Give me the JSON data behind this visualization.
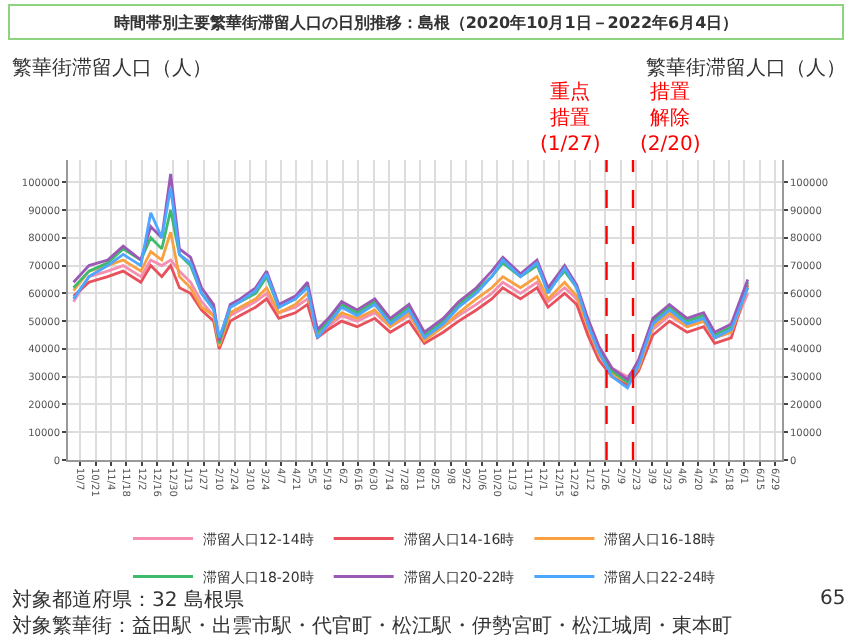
{
  "chart_data": {
    "type": "line",
    "title": "時間帯別主要繁華街滞留人口の日別推移：島根（2020年10月1日－2022年6月4日）",
    "ylabel": "繁華街滞留人口（人）",
    "y2label": "繁華街滞留人口（人）",
    "x": [
      "2020-10-01",
      "2020-10-15",
      "2020-11-01",
      "2020-11-15",
      "2020-12-01",
      "2020-12-10",
      "2020-12-20",
      "2020-12-28",
      "2021-01-05",
      "2021-01-15",
      "2021-01-25",
      "2021-02-05",
      "2021-02-10",
      "2021-02-20",
      "2021-03-01",
      "2021-03-15",
      "2021-03-25",
      "2021-04-05",
      "2021-04-20",
      "2021-05-01",
      "2021-05-10",
      "2021-05-20",
      "2021-06-01",
      "2021-06-15",
      "2021-07-01",
      "2021-07-15",
      "2021-08-01",
      "2021-08-15",
      "2021-09-01",
      "2021-09-15",
      "2021-10-01",
      "2021-10-15",
      "2021-10-25",
      "2021-11-10",
      "2021-11-25",
      "2021-12-05",
      "2021-12-20",
      "2021-12-31",
      "2022-01-10",
      "2022-01-20",
      "2022-02-01",
      "2022-02-15",
      "2022-02-25",
      "2022-03-10",
      "2022-03-25",
      "2022-04-10",
      "2022-04-25",
      "2022-05-05",
      "2022-05-20",
      "2022-06-04"
    ],
    "series": [
      {
        "name": "滞留人口12-14時",
        "color": "#f48fb1",
        "values": [
          57000,
          66000,
          68000,
          70000,
          66000,
          72000,
          70000,
          72000,
          68000,
          64000,
          57000,
          52000,
          44000,
          52000,
          54000,
          57000,
          60000,
          53000,
          55000,
          58000,
          46000,
          48000,
          52000,
          50000,
          53000,
          48000,
          52000,
          44000,
          48000,
          52000,
          56000,
          60000,
          64000,
          60000,
          64000,
          57000,
          62000,
          58000,
          47000,
          38000,
          33000,
          30000,
          34000,
          47000,
          52000,
          48000,
          50000,
          44000,
          46000,
          60000
        ]
      },
      {
        "name": "滞留人口14-16時",
        "color": "#e8505b",
        "values": [
          59000,
          64000,
          66000,
          68000,
          64000,
          70000,
          66000,
          70000,
          62000,
          60000,
          54000,
          50000,
          40000,
          50000,
          52000,
          55000,
          58000,
          51000,
          53000,
          56000,
          44000,
          47000,
          50000,
          48000,
          51000,
          46000,
          50000,
          42000,
          46000,
          50000,
          54000,
          58000,
          62000,
          58000,
          62000,
          55000,
          60000,
          56000,
          45000,
          36000,
          30000,
          27000,
          32000,
          45000,
          50000,
          46000,
          48000,
          42000,
          44000,
          63000
        ]
      },
      {
        "name": "滞留人口16-18時",
        "color": "#f9a03f",
        "values": [
          61000,
          68000,
          70000,
          72000,
          68000,
          75000,
          72000,
          82000,
          66000,
          62000,
          55000,
          52000,
          41000,
          53000,
          55000,
          58000,
          62000,
          53000,
          56000,
          60000,
          45000,
          49000,
          53000,
          51000,
          54000,
          48000,
          53000,
          43000,
          48000,
          53000,
          58000,
          62000,
          66000,
          62000,
          66000,
          58000,
          64000,
          59000,
          48000,
          38000,
          31000,
          28000,
          33000,
          48000,
          53000,
          48000,
          50000,
          44000,
          46000,
          62000
        ]
      },
      {
        "name": "滞留人口18-20時",
        "color": "#3dbb6b",
        "values": [
          62000,
          68000,
          71000,
          76000,
          72000,
          80000,
          76000,
          90000,
          74000,
          70000,
          60000,
          55000,
          42000,
          55000,
          57000,
          60000,
          66000,
          55000,
          58000,
          63000,
          46000,
          50000,
          56000,
          53000,
          57000,
          50000,
          55000,
          45000,
          50000,
          56000,
          61000,
          66000,
          71000,
          66000,
          70000,
          61000,
          68000,
          62000,
          50000,
          40000,
          32000,
          28000,
          35000,
          50000,
          55000,
          50000,
          52000,
          45000,
          48000,
          64000
        ]
      },
      {
        "name": "滞留人口20-22時",
        "color": "#9b59b6",
        "values": [
          64000,
          70000,
          72000,
          77000,
          72000,
          84000,
          80000,
          103000,
          76000,
          73000,
          62000,
          56000,
          43000,
          56000,
          58000,
          62000,
          68000,
          56000,
          59000,
          64000,
          47000,
          51000,
          57000,
          54000,
          58000,
          51000,
          56000,
          46000,
          51000,
          57000,
          62000,
          68000,
          73000,
          67000,
          72000,
          62000,
          70000,
          63000,
          51000,
          41000,
          33000,
          29000,
          36000,
          51000,
          56000,
          51000,
          53000,
          46000,
          49000,
          65000
        ]
      },
      {
        "name": "滞留人口22-24時",
        "color": "#4da6ff",
        "values": [
          58000,
          66000,
          70000,
          74000,
          70000,
          89000,
          80000,
          98000,
          74000,
          71000,
          60000,
          54000,
          44000,
          55000,
          57000,
          61000,
          67000,
          55000,
          58000,
          62000,
          44000,
          49000,
          55000,
          52000,
          56000,
          49000,
          54000,
          44000,
          49000,
          55000,
          60000,
          66000,
          72000,
          66000,
          71000,
          60000,
          69000,
          62000,
          49000,
          39000,
          30000,
          26000,
          34000,
          49000,
          54000,
          49000,
          51000,
          44000,
          47000,
          62000
        ]
      }
    ],
    "xlim": [
      "2020-09-26",
      "2022-07-05"
    ],
    "xticks": [
      {
        "value": "2020-10-07",
        "label": "10/7"
      },
      {
        "value": "2020-10-21",
        "label": "10/21"
      },
      {
        "value": "2020-11-04",
        "label": "11/4"
      },
      {
        "value": "2020-11-18",
        "label": "11/18"
      },
      {
        "value": "2020-12-02",
        "label": "12/2"
      },
      {
        "value": "2020-12-16",
        "label": "12/16"
      },
      {
        "value": "2020-12-30",
        "label": "12/30"
      },
      {
        "value": "2021-01-13",
        "label": "1/13"
      },
      {
        "value": "2021-01-27",
        "label": "1/27"
      },
      {
        "value": "2021-02-10",
        "label": "2/10"
      },
      {
        "value": "2021-02-24",
        "label": "2/24"
      },
      {
        "value": "2021-03-10",
        "label": "3/10"
      },
      {
        "value": "2021-03-24",
        "label": "3/24"
      },
      {
        "value": "2021-04-07",
        "label": "4/7"
      },
      {
        "value": "2021-04-21",
        "label": "4/21"
      },
      {
        "value": "2021-05-05",
        "label": "5/5"
      },
      {
        "value": "2021-05-19",
        "label": "5/19"
      },
      {
        "value": "2021-06-02",
        "label": "6/2"
      },
      {
        "value": "2021-06-16",
        "label": "6/16"
      },
      {
        "value": "2021-06-30",
        "label": "6/30"
      },
      {
        "value": "2021-07-14",
        "label": "7/14"
      },
      {
        "value": "2021-07-28",
        "label": "7/28"
      },
      {
        "value": "2021-08-11",
        "label": "8/11"
      },
      {
        "value": "2021-08-25",
        "label": "8/25"
      },
      {
        "value": "2021-09-08",
        "label": "9/8"
      },
      {
        "value": "2021-09-22",
        "label": "9/22"
      },
      {
        "value": "2021-10-06",
        "label": "10/6"
      },
      {
        "value": "2021-10-20",
        "label": "10/20"
      },
      {
        "value": "2021-11-03",
        "label": "11/3"
      },
      {
        "value": "2021-11-17",
        "label": "11/17"
      },
      {
        "value": "2021-12-01",
        "label": "12/1"
      },
      {
        "value": "2021-12-15",
        "label": "12/15"
      },
      {
        "value": "2021-12-29",
        "label": "12/29"
      },
      {
        "value": "2022-01-12",
        "label": "1/12"
      },
      {
        "value": "2022-01-26",
        "label": "1/26"
      },
      {
        "value": "2022-02-09",
        "label": "2/9"
      },
      {
        "value": "2022-02-23",
        "label": "2/23"
      },
      {
        "value": "2022-03-09",
        "label": "3/9"
      },
      {
        "value": "2022-03-23",
        "label": "3/23"
      },
      {
        "value": "2022-04-06",
        "label": "4/6"
      },
      {
        "value": "2022-04-20",
        "label": "4/20"
      },
      {
        "value": "2022-05-04",
        "label": "5/4"
      },
      {
        "value": "2022-05-18",
        "label": "5/18"
      },
      {
        "value": "2022-06-01",
        "label": "6/1"
      },
      {
        "value": "2022-06-15",
        "label": "6/15"
      },
      {
        "value": "2022-06-29",
        "label": "6/29"
      }
    ],
    "ylim": [
      0,
      108000
    ],
    "yticks": [
      0,
      10000,
      20000,
      30000,
      40000,
      50000,
      60000,
      70000,
      80000,
      90000,
      100000
    ],
    "y2lim": [
      0,
      108000
    ],
    "y2ticks": [
      0,
      10000,
      20000,
      30000,
      40000,
      50000,
      60000,
      70000,
      80000,
      90000,
      100000
    ],
    "ref_lines": [
      {
        "axis": "x",
        "value": "2022-01-27",
        "label": "重点措置(1/27)",
        "color": "#ff0000",
        "line_style": "dashed"
      },
      {
        "axis": "x",
        "value": "2022-02-20",
        "label": "措置解除(2/20)",
        "color": "#ff0000",
        "line_style": "dashed"
      }
    ],
    "annotations": [
      "対象都道府県：32 島根県",
      "対象繁華街：益田駅・出雲市駅・代官町・松江駅・伊勢宮町・松江城周・東本町",
      "65"
    ],
    "grid": true,
    "legend": "bottom",
    "marker": "none",
    "line_style": "solid"
  }
}
